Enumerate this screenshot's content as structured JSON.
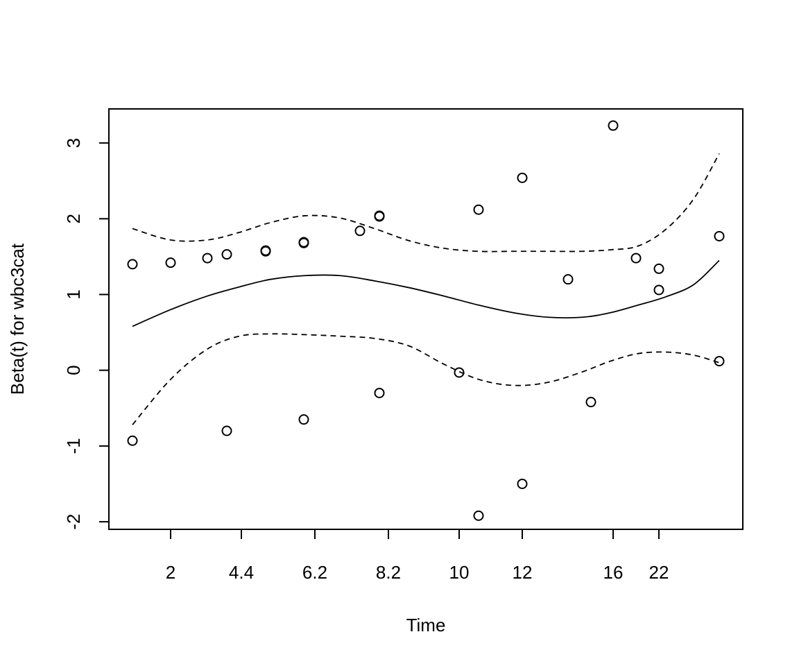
{
  "chart_data": {
    "type": "scatter",
    "title": "",
    "xlabel": "Time",
    "ylabel": "Beta(t) for wbc3cat",
    "x_scale": "rank",
    "x_tick_labels": [
      "2",
      "4.4",
      "6.2",
      "8.2",
      "10",
      "12",
      "16",
      "22"
    ],
    "ylim": [
      -2.1,
      3.45
    ],
    "y_ticks": [
      -2,
      -1,
      0,
      1,
      2,
      3
    ],
    "y_tick_labels": [
      "-2",
      "-1",
      "0",
      "1",
      "2",
      "3"
    ],
    "grid": false,
    "legend": "none",
    "series": [
      {
        "kind": "points",
        "marker": "open-circle",
        "data": [
          [
            "1",
            1.4
          ],
          [
            "1",
            -0.93
          ],
          [
            "2",
            1.42
          ],
          [
            "3",
            1.48
          ],
          [
            "4",
            1.53
          ],
          [
            "4",
            -0.8
          ],
          [
            "5",
            1.58
          ],
          [
            "5",
            1.57
          ],
          [
            "6",
            1.69
          ],
          [
            "6",
            1.68
          ],
          [
            "6",
            -0.65
          ],
          [
            "7",
            1.84
          ],
          [
            "8",
            2.04
          ],
          [
            "8",
            2.03
          ],
          [
            "8",
            -0.3
          ],
          [
            "10",
            -0.03
          ],
          [
            "11",
            2.12
          ],
          [
            "11",
            -1.92
          ],
          [
            "12",
            2.54
          ],
          [
            "12",
            -1.5
          ],
          [
            "13",
            1.2
          ],
          [
            "15",
            -0.42
          ],
          [
            "16",
            3.23
          ],
          [
            "17",
            1.48
          ],
          [
            "22",
            1.34
          ],
          [
            "22",
            1.06
          ],
          [
            "23",
            1.77
          ],
          [
            "23",
            0.12
          ]
        ]
      },
      {
        "kind": "line",
        "style": "solid",
        "x_rank": [
          1,
          2,
          3,
          4,
          5,
          6,
          7,
          8,
          9,
          10,
          11,
          12,
          13,
          14,
          15,
          16,
          17,
          18,
          19
        ],
        "values": [
          0.58,
          0.8,
          0.98,
          1.1,
          1.2,
          1.25,
          1.25,
          1.18,
          1.09,
          0.98,
          0.86,
          0.76,
          0.7,
          0.7,
          0.76,
          0.86,
          0.97,
          1.13,
          1.45
        ]
      },
      {
        "kind": "line",
        "style": "dashed",
        "x_rank": [
          1,
          2,
          3,
          4,
          5,
          6,
          7,
          8,
          9,
          10,
          11,
          12,
          13,
          14,
          15,
          16,
          17,
          18,
          19
        ],
        "values": [
          1.87,
          1.72,
          1.72,
          1.82,
          1.95,
          2.04,
          2.01,
          1.87,
          1.71,
          1.61,
          1.57,
          1.57,
          1.57,
          1.57,
          1.59,
          1.64,
          1.86,
          2.26,
          2.86
        ]
      },
      {
        "kind": "line",
        "style": "dashed",
        "x_rank": [
          1,
          2,
          3,
          4,
          5,
          6,
          7,
          8,
          9,
          10,
          11,
          12,
          13,
          14,
          15,
          16,
          17,
          18,
          19
        ],
        "values": [
          -0.72,
          -0.12,
          0.28,
          0.45,
          0.48,
          0.47,
          0.45,
          0.42,
          0.32,
          0.08,
          -0.12,
          -0.2,
          -0.16,
          -0.02,
          0.12,
          0.22,
          0.24,
          0.2,
          0.1
        ]
      }
    ]
  }
}
